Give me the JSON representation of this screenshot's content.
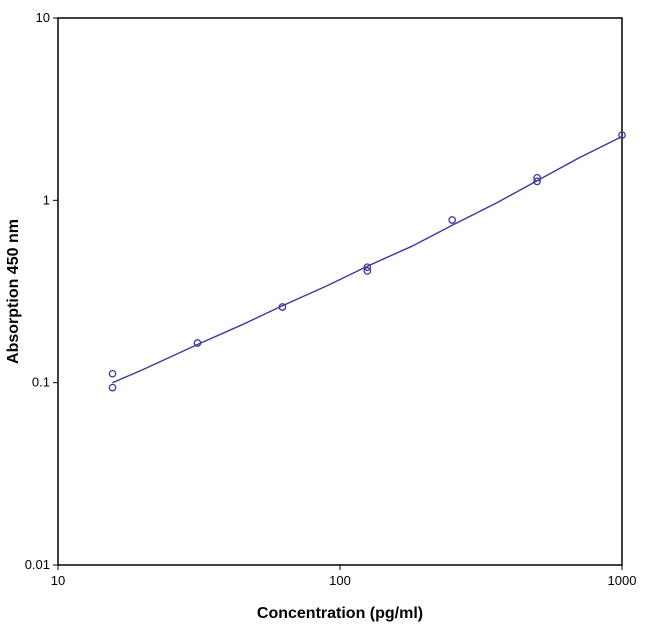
{
  "chart_data": {
    "type": "scatter",
    "xlabel": "Concentration (pg/ml)",
    "ylabel": "Absorption 450 nm",
    "xscale": "log",
    "yscale": "log",
    "xlim": [
      10,
      1000
    ],
    "ylim": [
      0.01,
      10
    ],
    "x_ticks": [
      {
        "value": 10,
        "label": "10"
      },
      {
        "value": 100,
        "label": "100"
      },
      {
        "value": 1000,
        "label": "1000"
      }
    ],
    "y_ticks": [
      {
        "value": 0.01,
        "label": "0.01"
      },
      {
        "value": 0.1,
        "label": "0.1"
      },
      {
        "value": 1,
        "label": "1"
      },
      {
        "value": 10,
        "label": "10"
      }
    ],
    "grid": false,
    "legend": "none",
    "series": [
      {
        "kind": "points",
        "marker": "open-circle",
        "x": [
          15.6,
          15.6,
          31.25,
          62.5,
          125,
          125,
          250,
          500,
          500,
          1000
        ],
        "y": [
          0.112,
          0.094,
          0.165,
          0.26,
          0.43,
          0.41,
          0.78,
          1.33,
          1.27,
          2.28
        ]
      },
      {
        "kind": "fit-curve",
        "x": [
          15.6,
          20,
          31.25,
          45,
          62.5,
          90,
          125,
          180,
          250,
          360,
          500,
          700,
          1000
        ],
        "y": [
          0.1,
          0.118,
          0.162,
          0.208,
          0.264,
          0.34,
          0.435,
          0.56,
          0.73,
          0.97,
          1.28,
          1.7,
          2.24
        ]
      }
    ],
    "colors": {
      "series": "#3a3a9c",
      "axis": "#000000"
    }
  }
}
